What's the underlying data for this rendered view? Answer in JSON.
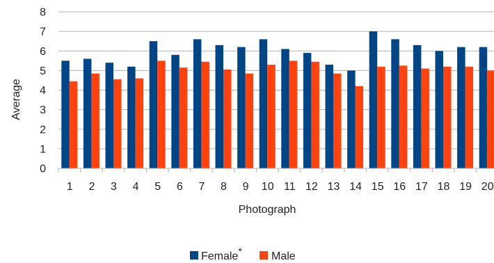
{
  "chart_data": {
    "type": "bar",
    "xlabel": "Photograph",
    "ylabel": "Average",
    "ylim": [
      0,
      8
    ],
    "yticks": [
      0,
      1,
      2,
      3,
      4,
      5,
      6,
      7,
      8
    ],
    "grid": "horizontal",
    "legend_position": "bottom",
    "categories": [
      "1",
      "2",
      "3",
      "4",
      "5",
      "6",
      "7",
      "8",
      "9",
      "10",
      "11",
      "12",
      "13",
      "14",
      "15",
      "16",
      "17",
      "18",
      "19",
      "20"
    ],
    "series": [
      {
        "name": "Female",
        "marker": "*",
        "color": "#004586",
        "values": [
          5.5,
          5.6,
          5.4,
          5.2,
          6.5,
          5.8,
          6.6,
          6.3,
          6.2,
          6.6,
          6.1,
          5.9,
          5.3,
          5.0,
          7.0,
          6.6,
          6.3,
          6.0,
          6.2,
          6.2
        ]
      },
      {
        "name": "Male",
        "color": "#ff420e",
        "values": [
          4.45,
          4.85,
          4.55,
          4.6,
          5.5,
          5.15,
          5.45,
          5.05,
          4.85,
          5.3,
          5.5,
          5.45,
          4.85,
          4.2,
          5.2,
          5.25,
          5.1,
          5.2,
          5.2,
          5.0
        ]
      }
    ]
  }
}
